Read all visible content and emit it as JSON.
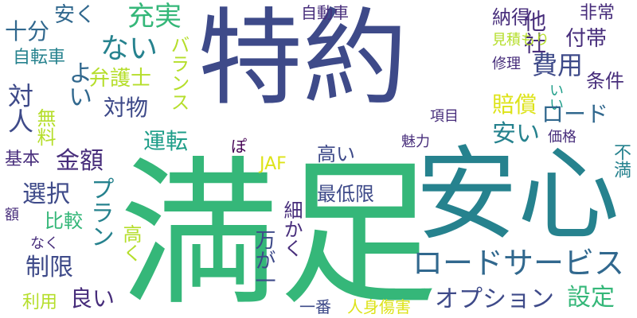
{
  "palette": {
    "navy": "#3e4a89",
    "indigo": "#472d7b",
    "purple": "#440154",
    "blue": "#31688e",
    "teal": "#26828e",
    "cyan": "#1f9e89",
    "green": "#35b779",
    "lime": "#6ece58",
    "yellow": "#b5de2b",
    "brightyellow": "#dde318"
  },
  "words": [
    {
      "text": "特約",
      "color": "#3e4a89"
    },
    {
      "text": "満足",
      "color": "#35b779"
    },
    {
      "text": "安心",
      "color": "#26828e"
    },
    {
      "text": "ロードサービス",
      "color": "#31688e"
    },
    {
      "text": "十分",
      "color": "#31688e"
    },
    {
      "text": "安く",
      "color": "#31688e"
    },
    {
      "text": "充実",
      "color": "#35b779"
    },
    {
      "text": "自動車",
      "color": "#472d7b"
    },
    {
      "text": "納得",
      "color": "#472d7b"
    },
    {
      "text": "非常",
      "color": "#472d7b"
    },
    {
      "text": "他社",
      "color": "#472d7b"
    },
    {
      "text": "付帯",
      "color": "#472d7b"
    },
    {
      "text": "見積もり",
      "color": "#b5de2b"
    },
    {
      "text": "自転車",
      "color": "#26828e"
    },
    {
      "text": "ない",
      "color": "#26828e"
    },
    {
      "text": "バランス",
      "color": "#b5de2b"
    },
    {
      "text": "費用",
      "color": "#3e4a89"
    },
    {
      "text": "修理",
      "color": "#472d7b"
    },
    {
      "text": "よい",
      "color": "#31688e"
    },
    {
      "text": "弁護士",
      "color": "#b5de2b"
    },
    {
      "text": "条件",
      "color": "#472d7b"
    },
    {
      "text": "対人",
      "color": "#3e4a89"
    },
    {
      "text": "対物",
      "color": "#3e4a89"
    },
    {
      "text": "いい",
      "color": "#1f9e89"
    },
    {
      "text": "賠償",
      "color": "#dde318"
    },
    {
      "text": "ロード",
      "color": "#31688e"
    },
    {
      "text": "無料",
      "color": "#b5de2b"
    },
    {
      "text": "項目",
      "color": "#472d7b"
    },
    {
      "text": "運転",
      "color": "#1f9e89"
    },
    {
      "text": "安い",
      "color": "#26828e"
    },
    {
      "text": "ぽ",
      "color": "#440154"
    },
    {
      "text": "価格",
      "color": "#472d7b"
    },
    {
      "text": "基本",
      "color": "#472d7b"
    },
    {
      "text": "金額",
      "color": "#472d7b"
    },
    {
      "text": "高い",
      "color": "#3e4a89"
    },
    {
      "text": "魅力",
      "color": "#472d7b"
    },
    {
      "text": "不満",
      "color": "#26828e"
    },
    {
      "text": "JAF",
      "color": "#dde318"
    },
    {
      "text": "選択",
      "color": "#3e4a89"
    },
    {
      "text": "プラン",
      "color": "#26828e"
    },
    {
      "text": "最低限",
      "color": "#3e4a89"
    },
    {
      "text": "額",
      "color": "#472d7b"
    },
    {
      "text": "比較",
      "color": "#35b779"
    },
    {
      "text": "高く",
      "color": "#b5de2b"
    },
    {
      "text": "細かく",
      "color": "#472d7b"
    },
    {
      "text": "万が一",
      "color": "#3e4a89"
    },
    {
      "text": "なく",
      "color": "#472d7b"
    },
    {
      "text": "制限",
      "color": "#3e4a89"
    },
    {
      "text": "オプション",
      "color": "#3e4a89"
    },
    {
      "text": "設定",
      "color": "#35b779"
    },
    {
      "text": "利用",
      "color": "#b5de2b"
    },
    {
      "text": "良い",
      "color": "#472d7b"
    },
    {
      "text": "一番",
      "color": "#3e4a89"
    },
    {
      "text": "人身傷害",
      "color": "#dde318"
    }
  ]
}
